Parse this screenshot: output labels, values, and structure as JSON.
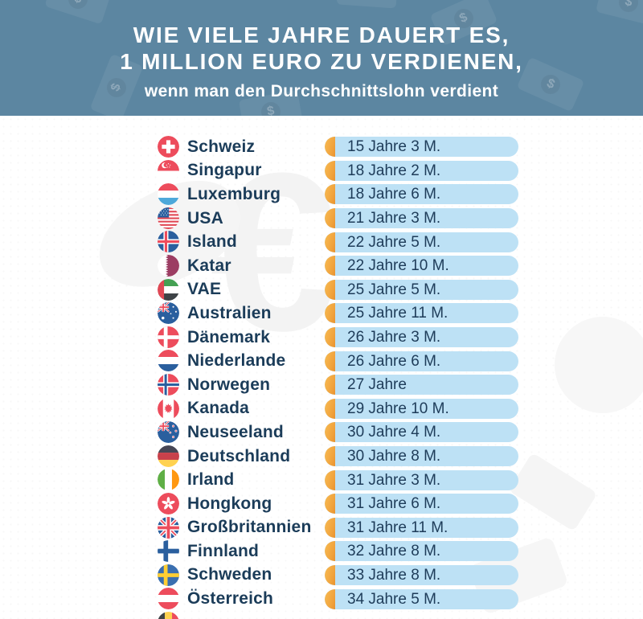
{
  "header": {
    "title_line1": "WIE VIELE JAHRE DAUERT ES,",
    "title_line2": "1 MILLION EURO ZU VERDIENEN,",
    "subtitle": "wenn man den Durchschnittslohn verdient"
  },
  "colors": {
    "header_bg": "#5C86A1",
    "bar_fill": "#BDE1F5",
    "bar_cap": "#F0A23C",
    "label_text": "#1B3C59",
    "value_text": "#1E3C59",
    "title_text": "#FFFFFF"
  },
  "icons": {
    "header_decoration": "dollar-bill-icon",
    "row_marker": "country-flag-icon"
  },
  "chart_data": {
    "type": "bar",
    "title": "Wie viele Jahre dauert es, 1 Million Euro zu verdienen, wenn man den Durchschnittslohn verdient",
    "unit": "Jahre und Monate",
    "legend_position": "none",
    "grid": false,
    "rows": [
      {
        "country": "Schweiz",
        "flag": "ch",
        "years": 15,
        "months": 3,
        "display": "15 Jahre 3 M."
      },
      {
        "country": "Singapur",
        "flag": "sg",
        "years": 18,
        "months": 2,
        "display": "18 Jahre 2 M."
      },
      {
        "country": "Luxemburg",
        "flag": "lu",
        "years": 18,
        "months": 6,
        "display": "18 Jahre 6 M."
      },
      {
        "country": "USA",
        "flag": "us",
        "years": 21,
        "months": 3,
        "display": "21 Jahre 3 M."
      },
      {
        "country": "Island",
        "flag": "is",
        "years": 22,
        "months": 5,
        "display": "22 Jahre 5 M."
      },
      {
        "country": "Katar",
        "flag": "qa",
        "years": 22,
        "months": 10,
        "display": "22 Jahre 10 M."
      },
      {
        "country": "VAE",
        "flag": "ae",
        "years": 25,
        "months": 5,
        "display": "25 Jahre 5 M."
      },
      {
        "country": "Australien",
        "flag": "au",
        "years": 25,
        "months": 11,
        "display": "25 Jahre 11 M."
      },
      {
        "country": "Dänemark",
        "flag": "dk",
        "years": 26,
        "months": 3,
        "display": "26 Jahre 3 M."
      },
      {
        "country": "Niederlande",
        "flag": "nl",
        "years": 26,
        "months": 6,
        "display": "26 Jahre 6 M."
      },
      {
        "country": "Norwegen",
        "flag": "no",
        "years": 27,
        "months": 0,
        "display": "27 Jahre"
      },
      {
        "country": "Kanada",
        "flag": "ca",
        "years": 29,
        "months": 10,
        "display": "29 Jahre 10 M."
      },
      {
        "country": "Neuseeland",
        "flag": "nz",
        "years": 30,
        "months": 4,
        "display": "30 Jahre 4 M."
      },
      {
        "country": "Deutschland",
        "flag": "de",
        "years": 30,
        "months": 8,
        "display": "30 Jahre 8 M."
      },
      {
        "country": "Irland",
        "flag": "ie",
        "years": 31,
        "months": 3,
        "display": "31 Jahre 3 M."
      },
      {
        "country": "Hongkong",
        "flag": "hk",
        "years": 31,
        "months": 6,
        "display": "31 Jahre 6 M."
      },
      {
        "country": "Großbritannien",
        "flag": "gb",
        "years": 31,
        "months": 11,
        "display": "31 Jahre 11 M."
      },
      {
        "country": "Finnland",
        "flag": "fi",
        "years": 32,
        "months": 8,
        "display": "32 Jahre 8 M."
      },
      {
        "country": "Schweden",
        "flag": "se",
        "years": 33,
        "months": 8,
        "display": "33 Jahre 8 M."
      },
      {
        "country": "Österreich",
        "flag": "at",
        "years": 34,
        "months": 5,
        "display": "34 Jahre 5 M."
      }
    ]
  },
  "partial_next_row": {
    "flag": "be"
  }
}
